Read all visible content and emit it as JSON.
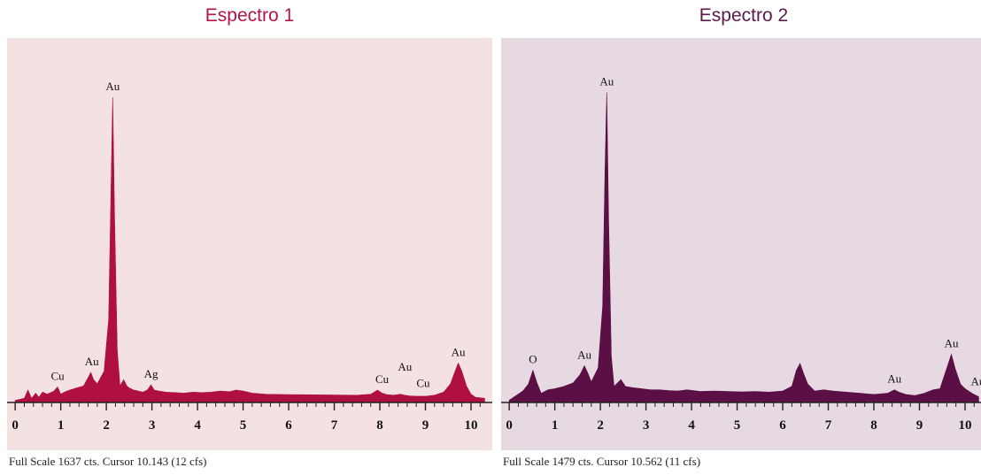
{
  "chart_data": [
    {
      "type": "area",
      "title": "Espectro 1",
      "caption": "Full Scale 1637 cts. Cursor 10.143 (12 cfs)",
      "xlim": [
        -0.1,
        10.35
      ],
      "ylim": [
        0,
        1637
      ],
      "xticks": [
        "0",
        "1",
        "2",
        "3",
        "4",
        "5",
        "6",
        "7",
        "8",
        "9",
        "10"
      ],
      "colors": {
        "title": "#b5134b",
        "fill": "#b0103f",
        "background": "#f4e2e3",
        "axis": "#222222"
      },
      "series": [
        {
          "x": [
            0.0,
            0.2,
            0.28,
            0.36,
            0.45,
            0.52,
            0.6,
            0.7,
            0.85,
            0.93,
            1.0,
            1.08,
            1.2,
            1.35,
            1.5,
            1.6,
            1.66,
            1.72,
            1.8,
            1.95,
            2.05,
            2.1,
            2.14,
            2.18,
            2.24,
            2.3,
            2.38,
            2.45,
            2.5,
            2.6,
            2.7,
            2.8,
            2.9,
            2.98,
            3.05,
            3.15,
            3.3,
            3.5,
            3.7,
            3.9,
            4.1,
            4.3,
            4.5,
            4.7,
            4.85,
            5.0,
            5.2,
            5.5,
            6.0,
            6.5,
            7.0,
            7.5,
            7.8,
            7.95,
            8.05,
            8.15,
            8.3,
            8.45,
            8.55,
            8.65,
            8.8,
            9.0,
            9.2,
            9.4,
            9.55,
            9.65,
            9.72,
            9.8,
            9.9,
            10.0,
            10.1,
            10.3
          ],
          "y": [
            10,
            20,
            60,
            20,
            45,
            25,
            50,
            40,
            55,
            75,
            40,
            50,
            60,
            70,
            80,
            120,
            145,
            110,
            90,
            150,
            400,
            1000,
            1470,
            900,
            250,
            80,
            110,
            80,
            70,
            60,
            55,
            50,
            60,
            85,
            60,
            55,
            50,
            48,
            45,
            50,
            48,
            50,
            55,
            52,
            60,
            55,
            45,
            40,
            38,
            37,
            36,
            35,
            40,
            60,
            45,
            38,
            35,
            40,
            35,
            32,
            30,
            30,
            35,
            50,
            90,
            150,
            190,
            150,
            80,
            40,
            25,
            20
          ]
        }
      ],
      "annotations": [
        {
          "text": "Au",
          "x": 2.14,
          "y": 1470
        },
        {
          "text": "Cu",
          "x": 0.93,
          "y": 75
        },
        {
          "text": "Au",
          "x": 1.68,
          "y": 145
        },
        {
          "text": "Ag",
          "x": 2.98,
          "y": 85
        },
        {
          "text": "Cu",
          "x": 8.05,
          "y": 60
        },
        {
          "text": "Au",
          "x": 8.55,
          "y": 120
        },
        {
          "text": "Cu",
          "x": 8.95,
          "y": 40
        },
        {
          "text": "Au",
          "x": 9.72,
          "y": 190
        }
      ]
    },
    {
      "type": "area",
      "title": "Espectro 2",
      "caption": "Full Scale 1479 cts. Cursor 10.562 (11 cfs)",
      "xlim": [
        -0.1,
        10.35
      ],
      "ylim": [
        0,
        1479
      ],
      "xticks": [
        "0",
        "1",
        "2",
        "3",
        "4",
        "5",
        "6",
        "7",
        "8",
        "9",
        "10"
      ],
      "colors": {
        "title": "#5c1a4a",
        "fill": "#5a0f45",
        "background": "#e6d9e1",
        "axis": "#222222"
      },
      "series": [
        {
          "x": [
            0.0,
            0.15,
            0.3,
            0.42,
            0.52,
            0.6,
            0.7,
            0.85,
            1.0,
            1.2,
            1.4,
            1.55,
            1.65,
            1.72,
            1.8,
            1.95,
            2.05,
            2.1,
            2.14,
            2.18,
            2.24,
            2.3,
            2.45,
            2.55,
            2.7,
            2.9,
            3.1,
            3.3,
            3.5,
            3.7,
            3.9,
            4.2,
            4.5,
            4.8,
            5.1,
            5.4,
            5.7,
            6.0,
            6.2,
            6.3,
            6.38,
            6.45,
            6.55,
            6.7,
            6.9,
            7.1,
            7.4,
            7.7,
            8.0,
            8.3,
            8.45,
            8.55,
            8.7,
            8.9,
            9.1,
            9.3,
            9.45,
            9.6,
            9.7,
            9.78,
            9.9,
            10.0,
            10.15,
            10.3
          ],
          "y": [
            10,
            30,
            50,
            80,
            140,
            90,
            40,
            55,
            60,
            70,
            85,
            120,
            160,
            130,
            90,
            150,
            420,
            1000,
            1350,
            800,
            200,
            70,
            100,
            70,
            65,
            60,
            55,
            55,
            52,
            50,
            55,
            48,
            50,
            48,
            46,
            48,
            45,
            50,
            70,
            140,
            170,
            130,
            80,
            50,
            55,
            50,
            45,
            40,
            35,
            40,
            55,
            45,
            35,
            30,
            40,
            55,
            60,
            150,
            210,
            150,
            80,
            60,
            40,
            25
          ]
        }
      ],
      "annotations": [
        {
          "text": "Au",
          "x": 2.14,
          "y": 1350
        },
        {
          "text": "O",
          "x": 0.52,
          "y": 140
        },
        {
          "text": "Au",
          "x": 1.65,
          "y": 160
        },
        {
          "text": "Au",
          "x": 8.45,
          "y": 55
        },
        {
          "text": "Au",
          "x": 9.7,
          "y": 210
        },
        {
          "text": "Au",
          "x": 10.28,
          "y": 45
        }
      ]
    }
  ]
}
